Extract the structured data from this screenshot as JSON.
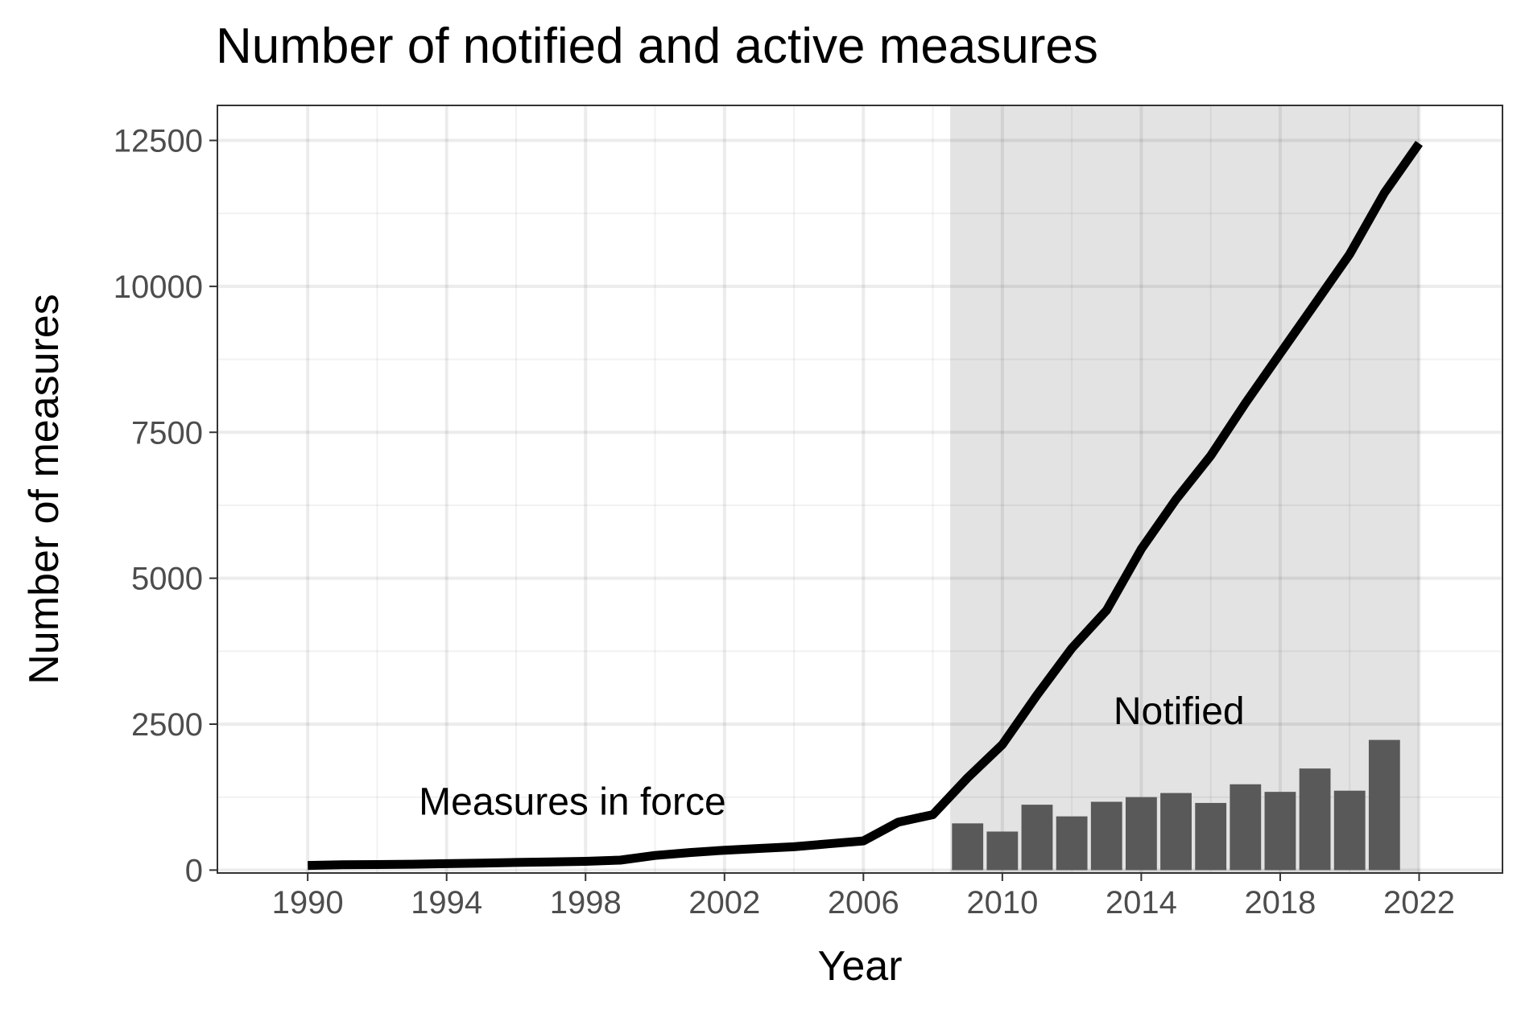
{
  "chart_data": {
    "type": "bar+line",
    "title": "Number of notified and active measures",
    "xlabel": "Year",
    "ylabel": "Number of measures",
    "xlim": [
      1987.4,
      2024.4
    ],
    "ylim": [
      -50,
      13100
    ],
    "x_ticks": [
      1990,
      1994,
      1998,
      2002,
      2006,
      2010,
      2014,
      2018,
      2022
    ],
    "y_ticks": [
      0,
      2500,
      5000,
      7500,
      10000,
      12500
    ],
    "grid": true,
    "shaded_region": {
      "x_start": 2009,
      "x_end": 2022,
      "color": "#e3e3e3"
    },
    "series": [
      {
        "name": "Measures in force",
        "type": "line",
        "color": "#000000",
        "x": [
          1990,
          1991,
          1992,
          1993,
          1994,
          1995,
          1996,
          1997,
          1998,
          1999,
          2000,
          2001,
          2002,
          2003,
          2004,
          2005,
          2006,
          2007,
          2008,
          2009,
          2010,
          2011,
          2012,
          2013,
          2014,
          2015,
          2016,
          2017,
          2018,
          2019,
          2020,
          2021,
          2022
        ],
        "y": [
          80,
          90,
          95,
          100,
          110,
          120,
          130,
          140,
          150,
          170,
          250,
          300,
          340,
          370,
          400,
          450,
          500,
          820,
          950,
          1580,
          2150,
          3000,
          3800,
          4450,
          5500,
          6350,
          7100,
          8000,
          8850,
          9700,
          10550,
          11600,
          12450
        ]
      },
      {
        "name": "Notified",
        "type": "bar",
        "color": "#595959",
        "x": [
          2009,
          2010,
          2011,
          2012,
          2013,
          2014,
          2015,
          2016,
          2017,
          2018,
          2019,
          2020,
          2021
        ],
        "y": [
          800,
          660,
          1120,
          920,
          1170,
          1250,
          1320,
          1150,
          1470,
          1340,
          1740,
          1360,
          2230
        ]
      }
    ],
    "annotations": [
      {
        "text": "Measures in force",
        "x": 1993.2,
        "y": 950
      },
      {
        "text": "Notified",
        "x": 2013.2,
        "y": 2500
      }
    ]
  }
}
